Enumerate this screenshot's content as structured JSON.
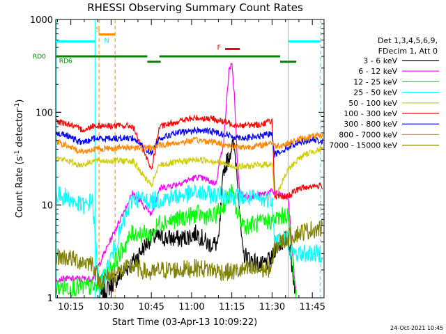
{
  "chart_data": {
    "type": "line",
    "title": "RHESSI Observing Summary Count Rates",
    "xlabel": "Start Time (03-Apr-13 10:09:22)",
    "ylabel_main": "Count Rate (s",
    "ylabel_sup1": "-1",
    "ylabel_mid": " detector",
    "ylabel_sup2": "-1",
    "ylabel_end": ")",
    "y_scale": "log",
    "ylim": [
      1,
      1000
    ],
    "xlim_minutes": [
      9.37,
      109.37
    ],
    "x_ticks": [
      {
        "minute": 15,
        "label": "10:15"
      },
      {
        "minute": 30,
        "label": "10:30"
      },
      {
        "minute": 45,
        "label": "10:45"
      },
      {
        "minute": 60,
        "label": "11:00"
      },
      {
        "minute": 75,
        "label": "11:15"
      },
      {
        "minute": 90,
        "label": "11:30"
      },
      {
        "minute": 105,
        "label": "11:45"
      }
    ],
    "y_ticks": [
      {
        "value": 1,
        "label": "1"
      },
      {
        "value": 10,
        "label": "10"
      },
      {
        "value": 100,
        "label": "100"
      },
      {
        "value": 1000,
        "label": "1000"
      }
    ],
    "legend_header": [
      "Det 1,3,4,5,6,9,",
      "FDecim 1, Att 0"
    ],
    "series": [
      {
        "name": "3 - 6 keV",
        "color": "#000000",
        "points": [
          [
            25.5,
            1.0
          ],
          [
            38,
            2.4
          ],
          [
            45,
            4.5
          ],
          [
            56,
            4.3
          ],
          [
            62,
            5.0
          ],
          [
            66,
            3.8
          ],
          [
            70,
            3.8
          ],
          [
            72,
            25
          ],
          [
            74,
            33
          ],
          [
            75,
            45
          ],
          [
            76,
            40
          ],
          [
            77,
            22
          ],
          [
            78,
            8
          ],
          [
            79,
            3
          ],
          [
            82,
            2.6
          ],
          [
            86,
            2.2
          ],
          [
            90,
            2.6
          ],
          [
            91,
            3.4
          ],
          [
            96,
            4.5
          ],
          [
            99,
            1.0
          ]
        ]
      },
      {
        "name": "6 - 12 keV",
        "color": "#ff00ff",
        "points": [
          [
            9.5,
            1.6
          ],
          [
            20,
            1.6
          ],
          [
            23,
            1.6
          ],
          [
            38,
            13.5
          ],
          [
            45,
            8
          ],
          [
            48,
            15
          ],
          [
            55,
            17
          ],
          [
            62,
            20
          ],
          [
            65,
            19
          ],
          [
            69,
            17
          ],
          [
            72,
            50
          ],
          [
            74,
            300
          ],
          [
            75,
            320
          ],
          [
            76,
            150
          ],
          [
            77,
            30
          ],
          [
            78,
            13
          ],
          [
            82,
            12
          ],
          [
            86,
            13
          ],
          [
            90,
            14
          ],
          [
            96,
            12
          ],
          [
            99,
            1.0
          ]
        ]
      },
      {
        "name": "12 - 25 keV",
        "color": "#00ff00",
        "points": [
          [
            9.5,
            1.3
          ],
          [
            23,
            1.3
          ],
          [
            25.5,
            1.3
          ],
          [
            38,
            5
          ],
          [
            45,
            4.8
          ],
          [
            48,
            6.5
          ],
          [
            55,
            7
          ],
          [
            62,
            8
          ],
          [
            68,
            7.3
          ],
          [
            72,
            10
          ],
          [
            75,
            14
          ],
          [
            77,
            8
          ],
          [
            80,
            6
          ],
          [
            86,
            6.4
          ],
          [
            91,
            7
          ],
          [
            96,
            8
          ],
          [
            99,
            1.0
          ]
        ]
      },
      {
        "name": "25 - 50 keV",
        "color": "#00ffff",
        "points": [
          [
            9.5,
            13
          ],
          [
            14,
            12
          ],
          [
            18,
            10
          ],
          [
            21,
            9.8
          ],
          [
            23,
            12
          ],
          [
            25.5,
            1.2
          ],
          [
            38,
            12
          ],
          [
            45,
            11
          ],
          [
            48,
            11.5
          ],
          [
            55,
            12.5
          ],
          [
            62,
            13.5
          ],
          [
            68,
            12.8
          ],
          [
            72,
            13
          ],
          [
            75,
            12.5
          ],
          [
            80,
            12
          ],
          [
            86,
            11.5
          ],
          [
            90,
            11.8
          ],
          [
            91,
            4.2
          ],
          [
            96,
            4.5
          ],
          [
            97,
            3.0
          ],
          [
            109,
            3.0
          ]
        ]
      },
      {
        "name": "50 - 100 keV",
        "color": "#cccc00",
        "points": [
          [
            9.5,
            32
          ],
          [
            14,
            30
          ],
          [
            18,
            27
          ],
          [
            21,
            28
          ],
          [
            23,
            30
          ],
          [
            38,
            30
          ],
          [
            45,
            16
          ],
          [
            48,
            27
          ],
          [
            55,
            29
          ],
          [
            62,
            31
          ],
          [
            68,
            30
          ],
          [
            72,
            28
          ],
          [
            75,
            26
          ],
          [
            80,
            26
          ],
          [
            86,
            27
          ],
          [
            90,
            28
          ],
          [
            91,
            12
          ],
          [
            96,
            24
          ],
          [
            100,
            32
          ],
          [
            105,
            38
          ],
          [
            109,
            40
          ]
        ]
      },
      {
        "name": "100 - 300 keV",
        "color": "#ff0000",
        "points": [
          [
            9.5,
            80
          ],
          [
            14,
            75
          ],
          [
            18,
            66
          ],
          [
            21,
            65
          ],
          [
            23,
            72
          ],
          [
            38,
            71
          ],
          [
            45,
            24
          ],
          [
            48,
            69
          ],
          [
            55,
            80
          ],
          [
            62,
            87
          ],
          [
            68,
            85
          ],
          [
            72,
            79
          ],
          [
            75,
            75
          ],
          [
            80,
            72
          ],
          [
            86,
            74
          ],
          [
            90,
            82
          ],
          [
            91,
            12
          ],
          [
            96,
            12.5
          ],
          [
            100,
            15
          ],
          [
            105,
            16
          ],
          [
            109,
            16
          ]
        ]
      },
      {
        "name": "300 - 800 keV",
        "color": "#0000ff",
        "points": [
          [
            9.5,
            60
          ],
          [
            14,
            55
          ],
          [
            18,
            48
          ],
          [
            21,
            48
          ],
          [
            23,
            52
          ],
          [
            38,
            53
          ],
          [
            45,
            36
          ],
          [
            48,
            53
          ],
          [
            55,
            60
          ],
          [
            62,
            64
          ],
          [
            68,
            62
          ],
          [
            72,
            58
          ],
          [
            75,
            55
          ],
          [
            80,
            53
          ],
          [
            86,
            55
          ],
          [
            90,
            60
          ],
          [
            91,
            35
          ],
          [
            96,
            42
          ],
          [
            100,
            48
          ],
          [
            105,
            51
          ],
          [
            109,
            48
          ]
        ]
      },
      {
        "name": "800 - 7000 keV",
        "color": "#ff8800",
        "points": [
          [
            9.5,
            48
          ],
          [
            14,
            43
          ],
          [
            18,
            38
          ],
          [
            21,
            38
          ],
          [
            23,
            40
          ],
          [
            38,
            42
          ],
          [
            45,
            41
          ],
          [
            48,
            44
          ],
          [
            55,
            47
          ],
          [
            62,
            50
          ],
          [
            68,
            48
          ],
          [
            72,
            45
          ],
          [
            75,
            43
          ],
          [
            80,
            42
          ],
          [
            86,
            44
          ],
          [
            90,
            48
          ],
          [
            91,
            43
          ],
          [
            96,
            46
          ],
          [
            100,
            51
          ],
          [
            105,
            55
          ],
          [
            109,
            55
          ]
        ]
      },
      {
        "name": "7000 - 15000 keV",
        "color": "#808000",
        "points": [
          [
            9.5,
            2.8
          ],
          [
            14,
            2.7
          ],
          [
            18,
            2.5
          ],
          [
            21,
            2.4
          ],
          [
            23,
            2.4
          ],
          [
            25.5,
            1.5
          ],
          [
            38,
            2.2
          ],
          [
            45,
            1.8
          ],
          [
            48,
            2.0
          ],
          [
            55,
            2.0
          ],
          [
            62,
            2.1
          ],
          [
            68,
            2.0
          ],
          [
            72,
            1.9
          ],
          [
            75,
            1.9
          ],
          [
            80,
            2.0
          ],
          [
            86,
            2.0
          ],
          [
            90,
            2.1
          ],
          [
            91,
            3.5
          ],
          [
            96,
            4.5
          ],
          [
            100,
            5
          ],
          [
            105,
            5.5
          ],
          [
            109,
            5.5
          ]
        ]
      }
    ],
    "annotations": {
      "S": "S",
      "N": "N",
      "F": "F",
      "RD0": "RD0",
      "RD6": "RD6"
    },
    "flag_bars": [
      {
        "label": "S",
        "color": "#ff8800",
        "y_value": 690,
        "segments": [
          [
            25.5,
            31.5
          ]
        ]
      },
      {
        "label": "N",
        "color": "#00ffff",
        "y_value": 580,
        "segments": [
          [
            9.37,
            24
          ],
          [
            96,
            108
          ]
        ]
      },
      {
        "label": "F",
        "color": "#ff0000",
        "y_value": 480,
        "segments": [
          [
            72.5,
            78
          ]
        ]
      },
      {
        "label": "RD0",
        "color": "#008000",
        "y_value": 400,
        "segments": [
          [
            9.37,
            43.5
          ],
          [
            48,
            93
          ]
        ]
      },
      {
        "label": "RD6",
        "color": "#008000",
        "y_value": 350,
        "segments": [
          [
            43.5,
            48.5
          ],
          [
            93,
            99
          ]
        ]
      }
    ],
    "vlines": [
      {
        "minute": 9.5,
        "color": "#00ffff",
        "dash": false
      },
      {
        "minute": 24.0,
        "color": "#00ffff",
        "dash": false
      },
      {
        "minute": 25.5,
        "color": "#ff8800",
        "dash": true
      },
      {
        "minute": 31.5,
        "color": "#ff8800",
        "dash": true
      },
      {
        "minute": 96.0,
        "color": "#00ffff",
        "dash": false
      },
      {
        "minute": 108.0,
        "color": "#00ffff",
        "dash": true
      }
    ],
    "timestamp": "24-Oct-2021 10:45"
  }
}
